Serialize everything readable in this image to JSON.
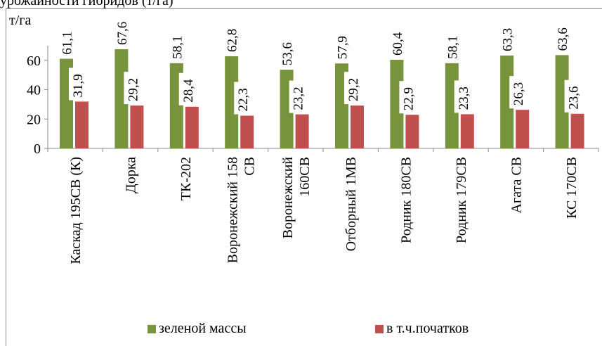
{
  "header": {
    "text": "урожайности гибридов (т/га)"
  },
  "chart_data": {
    "type": "bar",
    "ylabel": "т/га",
    "ylim": [
      0,
      70
    ],
    "yticks": [
      0,
      20,
      40,
      60
    ],
    "categories": [
      [
        "Каскад 195СВ (К)"
      ],
      [
        "Дорка"
      ],
      [
        "ТК-202"
      ],
      [
        "Воронежский 158",
        "СВ"
      ],
      [
        "Воронежский",
        "160СВ"
      ],
      [
        "Отборный 1МВ"
      ],
      [
        "Родник 180СВ"
      ],
      [
        "Родник 179СВ"
      ],
      [
        "Агата СВ"
      ],
      [
        "КС 170СВ"
      ]
    ],
    "series": [
      {
        "name": "зеленой массы",
        "labels": [
          "61,1",
          "67,6",
          "58,1",
          "62,8",
          "53,6",
          "57,9",
          "60,4",
          "58,1",
          "63,3",
          "63,6"
        ],
        "values": [
          61.1,
          67.6,
          58.1,
          62.8,
          53.6,
          57.9,
          60.4,
          58.1,
          63.3,
          63.6
        ],
        "color": "#77933C"
      },
      {
        "name": "в т.ч.початков",
        "labels": [
          "31,9",
          "29,2",
          "28,4",
          "22,3",
          "23,2",
          "29,2",
          "22,9",
          "23,3",
          "26,3",
          "23,6"
        ],
        "values": [
          31.9,
          29.2,
          28.4,
          22.3,
          23.2,
          29.2,
          22.9,
          23.3,
          26.3,
          23.6
        ],
        "color": "#C0504D"
      }
    ],
    "legend_position": "bottom",
    "grid": false
  }
}
